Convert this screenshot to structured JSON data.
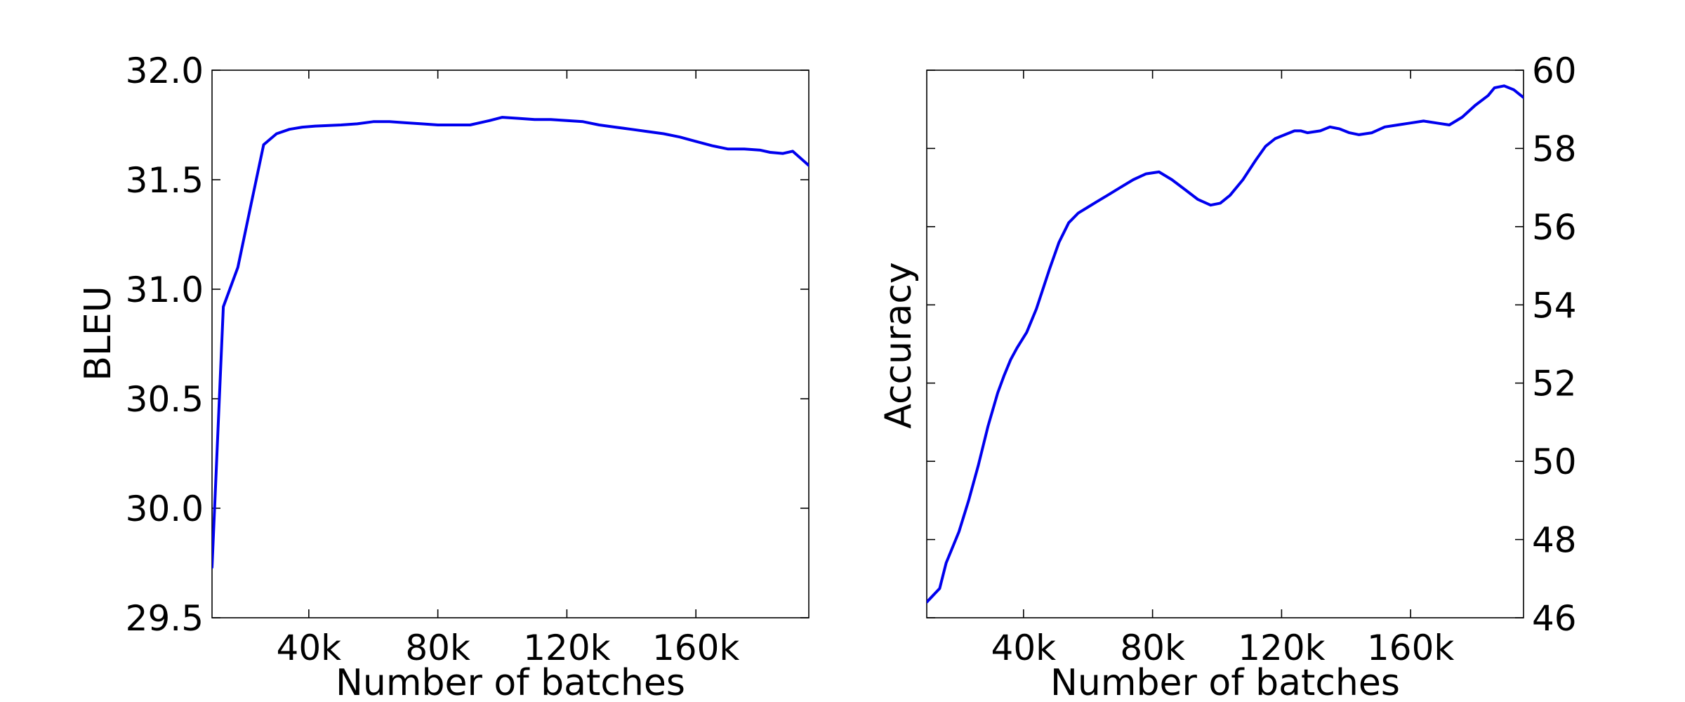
{
  "chart_data": [
    {
      "type": "line",
      "xlabel": "Number of batches",
      "ylabel": "BLEU",
      "y_axis_side": "left",
      "xlim": [
        10000,
        195000
      ],
      "ylim": [
        29.5,
        32.0
      ],
      "xticks": [
        40000,
        80000,
        120000,
        160000
      ],
      "xtick_labels": [
        "40k",
        "80k",
        "120k",
        "160k"
      ],
      "yticks": [
        29.5,
        30.0,
        30.5,
        31.0,
        31.5,
        32.0
      ],
      "ytick_labels": [
        "29.5",
        "30.0",
        "30.5",
        "31.0",
        "31.5",
        "32.0"
      ],
      "grid": false,
      "series": [
        {
          "color": "#0000ee",
          "x": [
            10000,
            13500,
            18000,
            22000,
            26000,
            30000,
            34000,
            38000,
            42000,
            50000,
            55000,
            60000,
            65000,
            70000,
            75000,
            80000,
            90000,
            96000,
            100000,
            105000,
            110000,
            115000,
            120000,
            125000,
            130000,
            135000,
            140000,
            145000,
            150000,
            155000,
            160000,
            165000,
            170000,
            175000,
            180000,
            183000,
            187000,
            190000,
            195000
          ],
          "y": [
            29.73,
            30.92,
            31.1,
            31.38,
            31.66,
            31.71,
            31.73,
            31.74,
            31.745,
            31.75,
            31.755,
            31.765,
            31.765,
            31.76,
            31.755,
            31.75,
            31.75,
            31.77,
            31.785,
            31.78,
            31.775,
            31.775,
            31.77,
            31.765,
            31.75,
            31.74,
            31.73,
            31.72,
            31.71,
            31.695,
            31.675,
            31.655,
            31.64,
            31.64,
            31.635,
            31.625,
            31.62,
            31.63,
            31.565
          ]
        }
      ]
    },
    {
      "type": "line",
      "xlabel": "Number of batches",
      "ylabel": "Accuracy",
      "y_axis_side": "right",
      "xlim": [
        10000,
        195000
      ],
      "ylim": [
        46,
        60
      ],
      "xticks": [
        40000,
        80000,
        120000,
        160000
      ],
      "xtick_labels": [
        "40k",
        "80k",
        "120k",
        "160k"
      ],
      "yticks": [
        46,
        48,
        50,
        52,
        54,
        56,
        58,
        60
      ],
      "ytick_labels": [
        "46",
        "48",
        "50",
        "52",
        "54",
        "56",
        "58",
        "60"
      ],
      "grid": false,
      "series": [
        {
          "color": "#0000ee",
          "x": [
            10000,
            14000,
            16000,
            20000,
            23000,
            26000,
            29000,
            32000,
            34000,
            36000,
            38000,
            41000,
            44000,
            48000,
            51000,
            54000,
            57000,
            60000,
            63000,
            66000,
            70000,
            74000,
            78000,
            82000,
            86000,
            90000,
            94000,
            98000,
            101000,
            104000,
            108000,
            112000,
            115000,
            118000,
            121000,
            124000,
            126000,
            128000,
            132000,
            135000,
            138000,
            141000,
            144000,
            148000,
            152000,
            156000,
            160000,
            164000,
            168000,
            172000,
            176000,
            180000,
            184000,
            186000,
            189000,
            192000,
            195000
          ],
          "y": [
            46.4,
            46.75,
            47.4,
            48.2,
            49.0,
            49.9,
            50.9,
            51.75,
            52.2,
            52.6,
            52.9,
            53.3,
            53.9,
            54.9,
            55.6,
            56.1,
            56.35,
            56.5,
            56.65,
            56.8,
            57.0,
            57.2,
            57.35,
            57.4,
            57.2,
            56.95,
            56.7,
            56.55,
            56.6,
            56.8,
            57.2,
            57.7,
            58.05,
            58.25,
            58.35,
            58.45,
            58.45,
            58.4,
            58.45,
            58.55,
            58.5,
            58.4,
            58.35,
            58.4,
            58.55,
            58.6,
            58.65,
            58.7,
            58.65,
            58.6,
            58.8,
            59.1,
            59.35,
            59.55,
            59.6,
            59.5,
            59.3
          ]
        }
      ]
    }
  ]
}
